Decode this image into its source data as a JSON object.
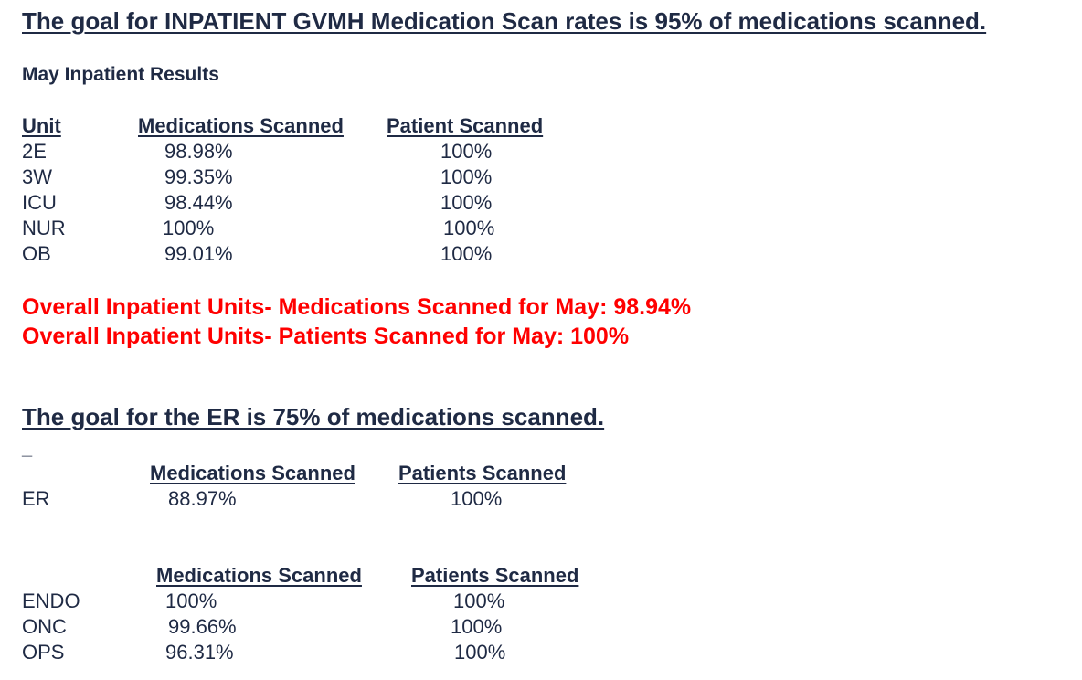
{
  "title": "The goal for INPATIENT GVMH Medication Scan rates  is 95% of medications scanned.",
  "subtitle": "May Inpatient Results",
  "inpatient": {
    "headers": [
      "Unit",
      "Medications Scanned",
      "Patient Scanned"
    ],
    "rows": [
      [
        "2E",
        "98.98%",
        "100%"
      ],
      [
        "3W",
        "99.35%",
        "100%"
      ],
      [
        "ICU",
        "98.44%",
        "100%"
      ],
      [
        "NUR",
        "100%",
        "100%"
      ],
      [
        "OB",
        "99.01%",
        "100%"
      ]
    ]
  },
  "overall": {
    "meds": "Overall Inpatient Units- Medications Scanned for May:  98.94%",
    "patients": "Overall Inpatient Units- Patients Scanned for May:  100%"
  },
  "er_goal": "The goal for the ER is 75% of medications scanned.",
  "dash": "_",
  "er": {
    "headers": [
      "Medications Scanned",
      "Patients Scanned"
    ],
    "rows": [
      [
        "ER",
        "88.97%",
        "100%"
      ]
    ]
  },
  "outpatient": {
    "headers": [
      "Medications Scanned",
      "Patients Scanned"
    ],
    "rows": [
      [
        "ENDO",
        "100%",
        "100%"
      ],
      [
        "ONC",
        "99.66%",
        "100%"
      ],
      [
        "OPS",
        "96.31%",
        "100%"
      ]
    ]
  }
}
